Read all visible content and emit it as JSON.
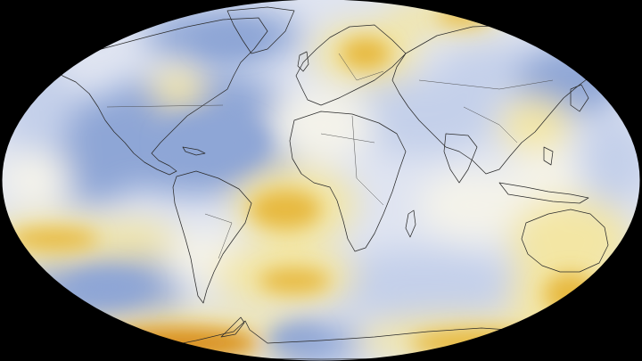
{
  "map": {
    "projection": "robinson",
    "background_color": "#000000",
    "colors": {
      "cold": "#8ea6d6",
      "cool": "#c4d0ea",
      "neutral": "#f4f3ea",
      "warm": "#f3e6a4",
      "hot": "#e7b941",
      "hottest": "#d98f1c"
    },
    "icons": [
      "globe-icon"
    ]
  }
}
